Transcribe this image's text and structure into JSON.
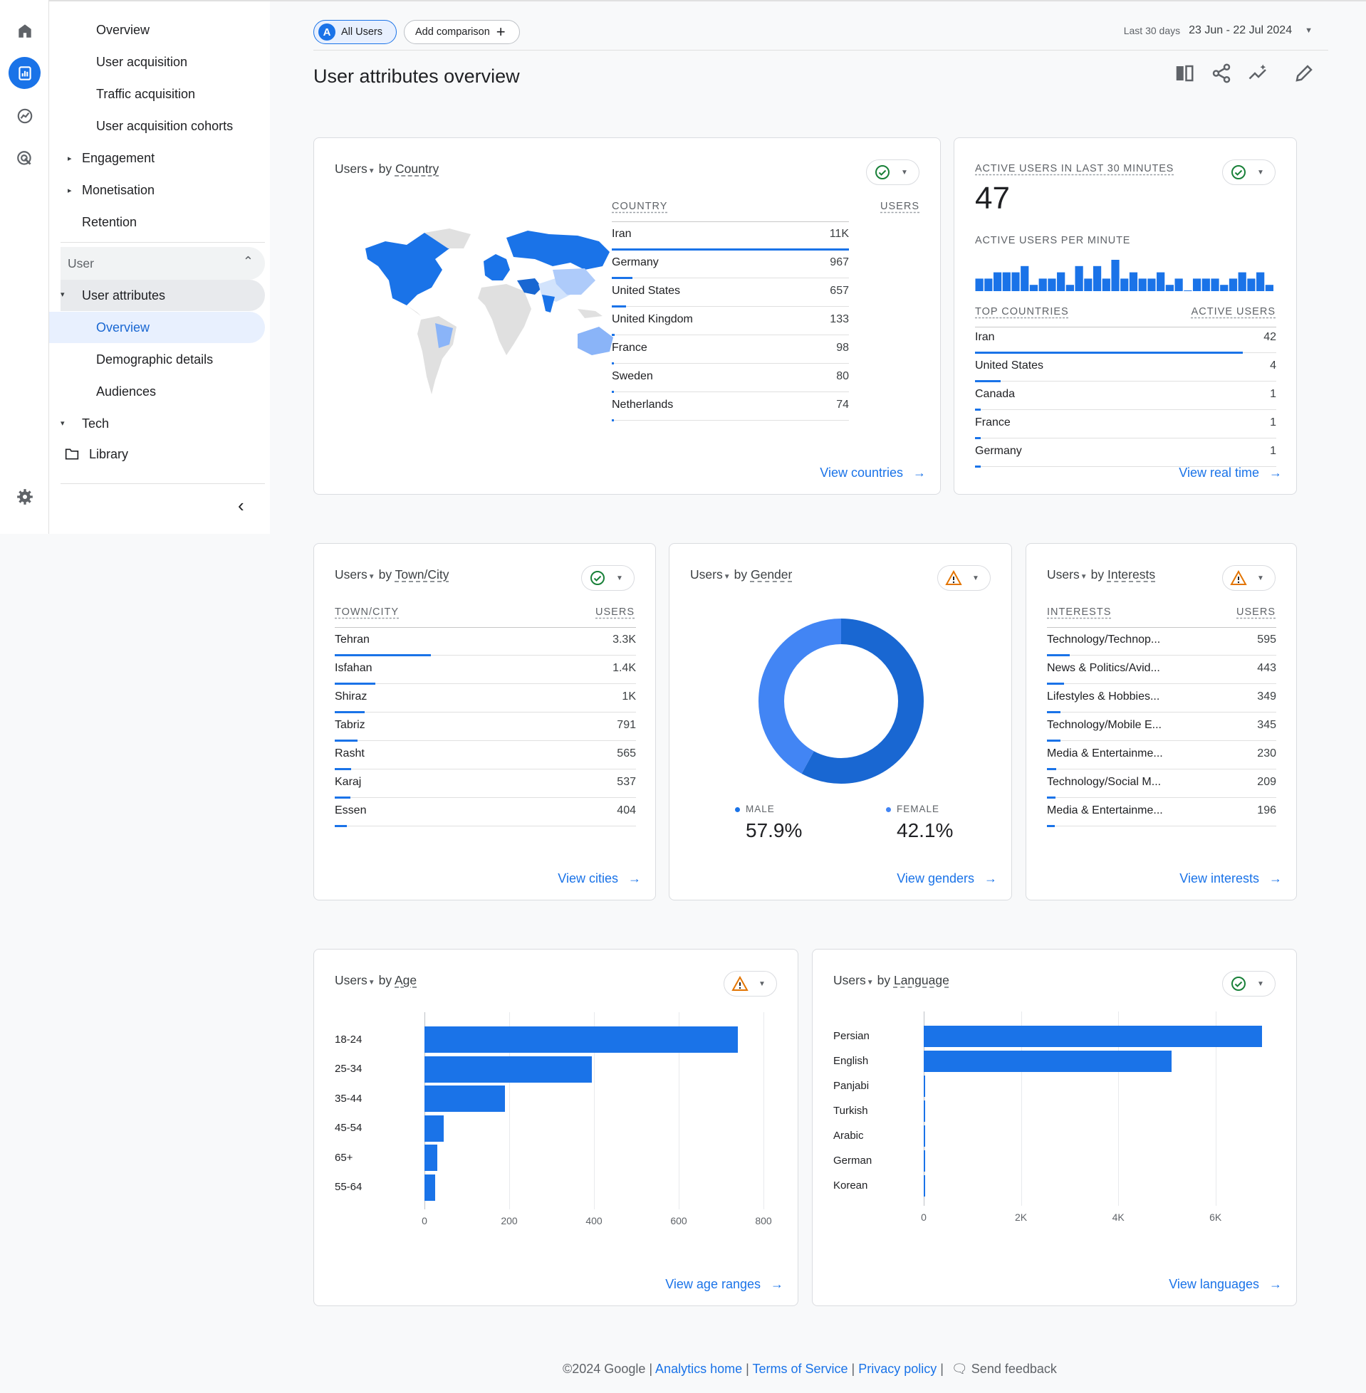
{
  "nav": {
    "items": [
      "Overview",
      "User acquisition",
      "Traffic acquisition",
      "User acquisition cohorts",
      "Engagement",
      "Monetisation",
      "Retention"
    ],
    "user_section": "User",
    "user_attributes": "User attributes",
    "sub_items": [
      "Overview",
      "Demographic details",
      "Audiences"
    ],
    "tech": "Tech",
    "library": "Library"
  },
  "header": {
    "segment_badge": "A",
    "segment": "All Users",
    "add_comparison": "Add comparison",
    "range_label": "Last 30 days",
    "date_range": "23 Jun - 22 Jul 2024",
    "page_title": "User attributes overview"
  },
  "cards": {
    "metric_prefix": "Users",
    "by": "by",
    "country": {
      "dimension": "Country",
      "col_dim": "COUNTRY",
      "col_metric": "USERS",
      "rows": [
        {
          "label": "Iran",
          "value": "11K",
          "frac": 1.0
        },
        {
          "label": "Germany",
          "value": "967",
          "frac": 0.088
        },
        {
          "label": "United States",
          "value": "657",
          "frac": 0.06
        },
        {
          "label": "United Kingdom",
          "value": "133",
          "frac": 0.012
        },
        {
          "label": "France",
          "value": "98",
          "frac": 0.009
        },
        {
          "label": "Sweden",
          "value": "80",
          "frac": 0.007
        },
        {
          "label": "Netherlands",
          "value": "74",
          "frac": 0.007
        }
      ],
      "link": "View countries"
    },
    "realtime": {
      "title": "ACTIVE USERS IN LAST 30 MINUTES",
      "value": "47",
      "per_minute": "ACTIVE USERS PER MINUTE",
      "minute_values": [
        2,
        2,
        3,
        3,
        3,
        4,
        1,
        2,
        2,
        3,
        1,
        4,
        2,
        4,
        2,
        5,
        2,
        3,
        2,
        2,
        3,
        1,
        2,
        0,
        2,
        2,
        2,
        1,
        2,
        3,
        2,
        3,
        1
      ],
      "col_dim": "TOP COUNTRIES",
      "col_metric": "ACTIVE USERS",
      "rows": [
        {
          "label": "Iran",
          "value": "42",
          "frac": 0.89
        },
        {
          "label": "United States",
          "value": "4",
          "frac": 0.085
        },
        {
          "label": "Canada",
          "value": "1",
          "frac": 0.02
        },
        {
          "label": "France",
          "value": "1",
          "frac": 0.02
        },
        {
          "label": "Germany",
          "value": "1",
          "frac": 0.02
        }
      ],
      "link": "View real time"
    },
    "city": {
      "dimension": "Town/City",
      "col_dim": "TOWN/CITY",
      "col_metric": "USERS",
      "rows": [
        {
          "label": "Tehran",
          "value": "3.3K",
          "frac": 0.32
        },
        {
          "label": "Isfahan",
          "value": "1.4K",
          "frac": 0.135
        },
        {
          "label": "Shiraz",
          "value": "1K",
          "frac": 0.1
        },
        {
          "label": "Tabriz",
          "value": "791",
          "frac": 0.076
        },
        {
          "label": "Rasht",
          "value": "565",
          "frac": 0.055
        },
        {
          "label": "Karaj",
          "value": "537",
          "frac": 0.052
        },
        {
          "label": "Essen",
          "value": "404",
          "frac": 0.04
        }
      ],
      "link": "View cities"
    },
    "gender": {
      "dimension": "Gender",
      "male_label": "MALE",
      "male_value": "57.9%",
      "female_label": "FEMALE",
      "female_value": "42.1%",
      "male_pct": 57.9,
      "female_pct": 42.1,
      "male_color": "#1967d2",
      "female_color": "#4285f4",
      "link": "View genders"
    },
    "interests": {
      "dimension": "Interests",
      "col_dim": "INTERESTS",
      "col_metric": "USERS",
      "rows": [
        {
          "label": "Technology/Technop...",
          "value": "595",
          "frac": 0.1
        },
        {
          "label": "News & Politics/Avid...",
          "value": "443",
          "frac": 0.075
        },
        {
          "label": "Lifestyles & Hobbies...",
          "value": "349",
          "frac": 0.06
        },
        {
          "label": "Technology/Mobile E...",
          "value": "345",
          "frac": 0.058
        },
        {
          "label": "Media & Entertainme...",
          "value": "230",
          "frac": 0.04
        },
        {
          "label": "Technology/Social M...",
          "value": "209",
          "frac": 0.036
        },
        {
          "label": "Media & Entertainme...",
          "value": "196",
          "frac": 0.033
        }
      ],
      "link": "View interests"
    },
    "age": {
      "dimension": "Age",
      "link": "View age ranges"
    },
    "language": {
      "dimension": "Language",
      "link": "View languages"
    }
  },
  "chart_data": [
    {
      "type": "bar",
      "orientation": "horizontal",
      "categories": [
        "18-24",
        "25-34",
        "35-44",
        "45-54",
        "65+",
        "55-64"
      ],
      "values": [
        740,
        395,
        190,
        45,
        30,
        25
      ],
      "xlim": [
        0,
        800
      ],
      "xticks": [
        "0",
        "200",
        "400",
        "600",
        "800"
      ],
      "color": "#1a73e8"
    },
    {
      "type": "bar",
      "orientation": "horizontal",
      "categories": [
        "Persian",
        "English",
        "Panjabi",
        "Turkish",
        "Arabic",
        "German",
        "Korean"
      ],
      "values": [
        6950,
        5100,
        20,
        15,
        12,
        10,
        8
      ],
      "xlim": [
        0,
        7000
      ],
      "xticks": [
        "0",
        "2K",
        "4K",
        "6K"
      ],
      "tick_values": [
        0,
        2000,
        4000,
        6000
      ],
      "color": "#1a73e8"
    }
  ],
  "footer": {
    "copyright": "©2024 Google |",
    "analytics_home": "Analytics home",
    "terms": "Terms of Service",
    "privacy": "Privacy policy",
    "feedback": "Send feedback"
  }
}
